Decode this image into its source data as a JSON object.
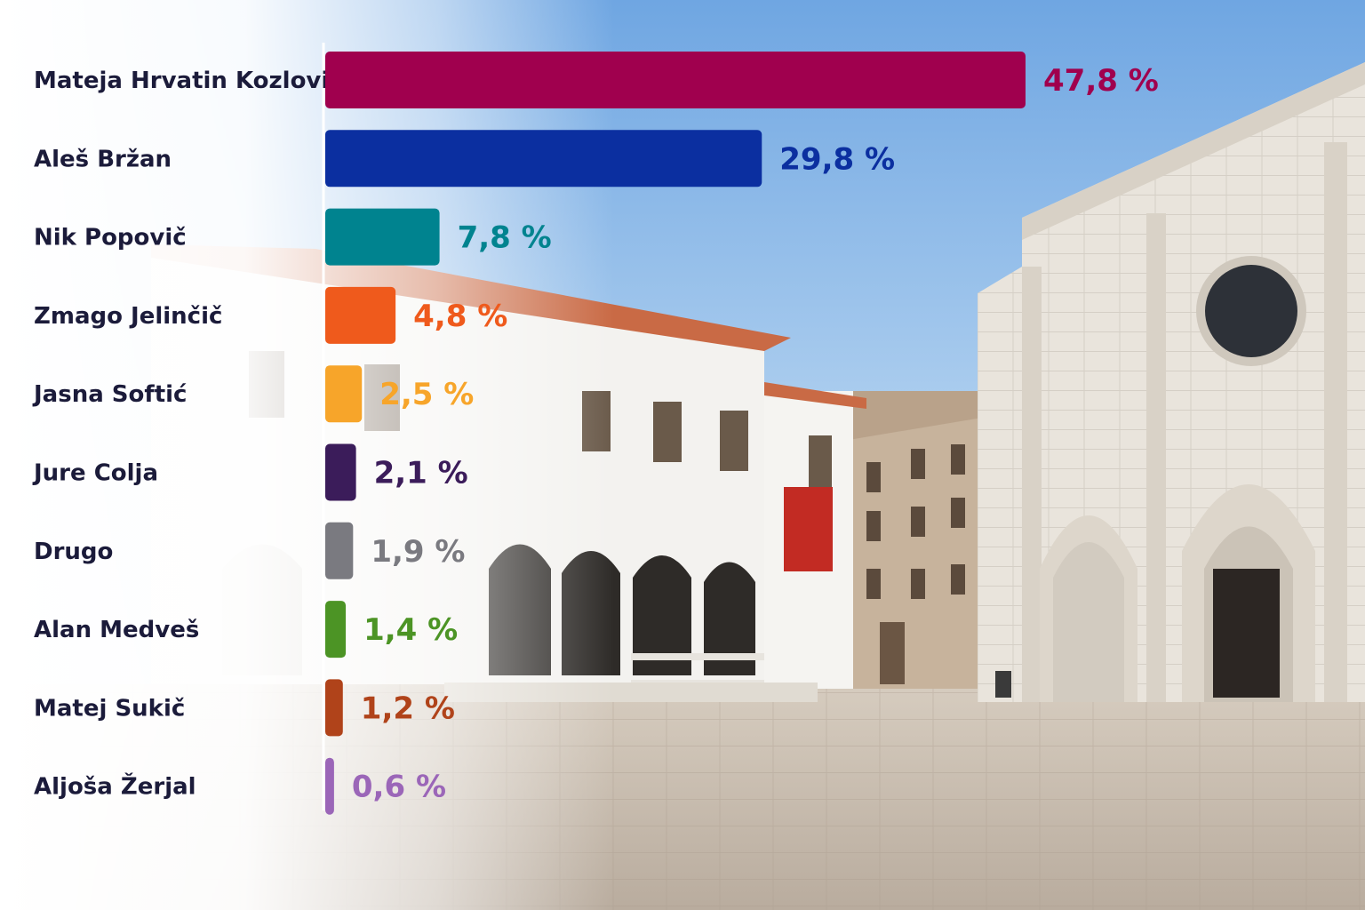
{
  "chart_data": {
    "type": "bar",
    "orientation": "horizontal",
    "categories": [
      "Mateja Hrvatin Kozlovič",
      "Aleš Bržan",
      "Nik Popovič",
      "Zmago Jelinčič",
      "Jasna Softić",
      "Jure Colja",
      "Drugo",
      "Alan Medveš",
      "Matej Sukič",
      "Aljoša Žerjal"
    ],
    "values": [
      47.8,
      29.8,
      7.8,
      4.8,
      2.5,
      2.1,
      1.9,
      1.4,
      1.2,
      0.6
    ],
    "value_labels": [
      "47,8 %",
      "29,8 %",
      "7,8 %",
      "4,8 %",
      "2,5 %",
      "2,1 %",
      "1,9 %",
      "1,4 %",
      "1,2 %",
      "0,6 %"
    ],
    "colors": [
      "#a0004e",
      "#0b2fa0",
      "#00838f",
      "#ef5a1c",
      "#f7a52a",
      "#3b1c5a",
      "#7a7a80",
      "#4c9425",
      "#b0431a",
      "#9b66b8"
    ],
    "title": "",
    "xlabel": "",
    "ylabel": "",
    "unit": "%",
    "grid": false,
    "legend": "none"
  },
  "background": {
    "sky_top": "#7aaee6",
    "sky_bottom": "#d9e9f6",
    "stone": "#ece8e2",
    "pavement": "#c9beb2",
    "fade": "#ffffff"
  }
}
